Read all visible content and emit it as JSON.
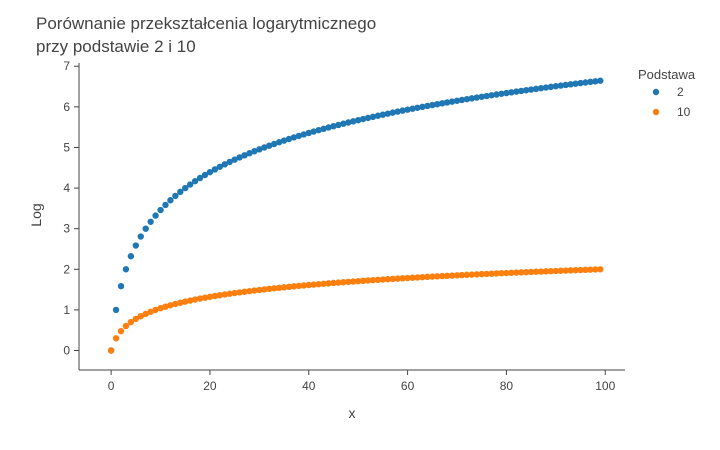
{
  "chart_data": {
    "type": "scatter",
    "title_lines": [
      "Porównanie przekształcenia logarytmicznego",
      "przy podstawie 2 i 10"
    ],
    "xlabel": "x",
    "ylabel": "Log",
    "xlim": [
      -6.5,
      104
    ],
    "ylim": [
      -0.48,
      7.08
    ],
    "x_ticks": [
      0,
      20,
      40,
      60,
      80,
      100
    ],
    "y_ticks": [
      0,
      1,
      2,
      3,
      4,
      5,
      6,
      7
    ],
    "grid": false,
    "legend_title": "Podstawa",
    "legend_position": "top-right",
    "x": [
      1,
      2,
      3,
      4,
      5,
      6,
      7,
      8,
      9,
      10,
      11,
      12,
      13,
      14,
      15,
      16,
      17,
      18,
      19,
      20,
      21,
      22,
      23,
      24,
      25,
      26,
      27,
      28,
      29,
      30,
      31,
      32,
      33,
      34,
      35,
      36,
      37,
      38,
      39,
      40,
      41,
      42,
      43,
      44,
      45,
      46,
      47,
      48,
      49,
      50,
      51,
      52,
      53,
      54,
      55,
      56,
      57,
      58,
      59,
      60,
      61,
      62,
      63,
      64,
      65,
      66,
      67,
      68,
      69,
      70,
      71,
      72,
      73,
      74,
      75,
      76,
      77,
      78,
      79,
      80,
      81,
      82,
      83,
      84,
      85,
      86,
      87,
      88,
      89,
      90,
      91,
      92,
      93,
      94,
      95,
      96,
      97,
      98,
      99,
      100
    ],
    "series": [
      {
        "name": "2",
        "color": "#1f77b4",
        "values": [
          0,
          1,
          1.585,
          2,
          2.322,
          2.585,
          2.807,
          3,
          3.17,
          3.322,
          3.459,
          3.585,
          3.7,
          3.807,
          3.907,
          4,
          4.087,
          4.17,
          4.248,
          4.322,
          4.392,
          4.459,
          4.524,
          4.585,
          4.644,
          4.7,
          4.755,
          4.807,
          4.858,
          4.907,
          4.954,
          5,
          5.044,
          5.087,
          5.129,
          5.17,
          5.209,
          5.248,
          5.285,
          5.322,
          5.358,
          5.392,
          5.426,
          5.459,
          5.492,
          5.524,
          5.555,
          5.585,
          5.615,
          5.644,
          5.672,
          5.7,
          5.728,
          5.755,
          5.781,
          5.807,
          5.833,
          5.858,
          5.883,
          5.907,
          5.931,
          5.954,
          5.977,
          6,
          6.022,
          6.044,
          6.066,
          6.087,
          6.109,
          6.129,
          6.15,
          6.17,
          6.19,
          6.209,
          6.229,
          6.248,
          6.267,
          6.285,
          6.304,
          6.322,
          6.34,
          6.358,
          6.375,
          6.392,
          6.409,
          6.426,
          6.443,
          6.459,
          6.476,
          6.492,
          6.508,
          6.524,
          6.539,
          6.555,
          6.57,
          6.585,
          6.6,
          6.615,
          6.629,
          6.644
        ]
      },
      {
        "name": "10",
        "color": "#ff7f0e",
        "values": [
          0,
          0.301,
          0.477,
          0.602,
          0.699,
          0.778,
          0.845,
          0.903,
          0.954,
          1,
          1.041,
          1.079,
          1.114,
          1.146,
          1.176,
          1.204,
          1.23,
          1.255,
          1.279,
          1.301,
          1.322,
          1.342,
          1.362,
          1.38,
          1.398,
          1.415,
          1.431,
          1.447,
          1.462,
          1.477,
          1.491,
          1.505,
          1.519,
          1.531,
          1.544,
          1.556,
          1.568,
          1.58,
          1.591,
          1.602,
          1.613,
          1.623,
          1.633,
          1.643,
          1.653,
          1.663,
          1.672,
          1.681,
          1.69,
          1.699,
          1.708,
          1.716,
          1.724,
          1.732,
          1.74,
          1.748,
          1.756,
          1.763,
          1.771,
          1.778,
          1.785,
          1.792,
          1.799,
          1.806,
          1.813,
          1.82,
          1.826,
          1.833,
          1.839,
          1.845,
          1.851,
          1.857,
          1.863,
          1.869,
          1.875,
          1.881,
          1.886,
          1.892,
          1.898,
          1.903,
          1.908,
          1.914,
          1.919,
          1.924,
          1.929,
          1.934,
          1.94,
          1.944,
          1.949,
          1.954,
          1.959,
          1.964,
          1.968,
          1.973,
          1.978,
          1.982,
          1.987,
          1.991,
          1.996,
          2
        ]
      }
    ]
  }
}
